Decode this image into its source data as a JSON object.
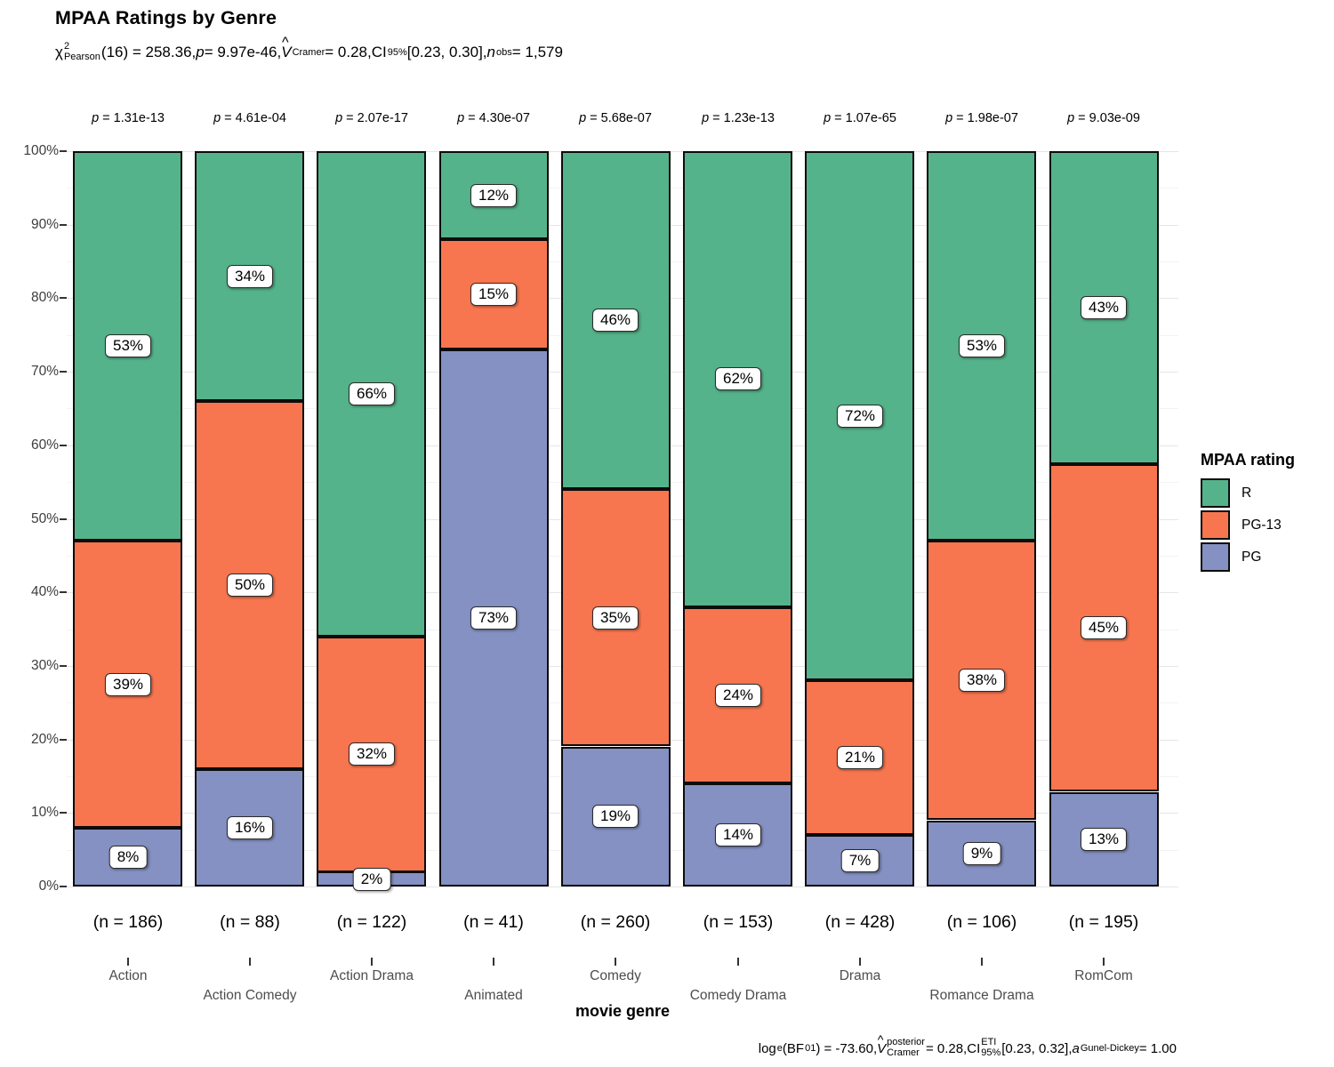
{
  "title": "MPAA Ratings by Genre",
  "subtitle": {
    "chi": "χ",
    "chi_sup": "2",
    "chi_sub": "Pearson",
    "p1": "(16) = 258.36, ",
    "p_sym": "p",
    "p2": " = 9.97e-46, ",
    "v_sym": "V",
    "hat": "^",
    "v_sub": "Cramer",
    "p3": " = 0.28, ",
    "ci_sym": "CI",
    "ci_sub": "95%",
    "p4": " [0.23, 0.30], ",
    "n_sym": "n",
    "n_sub": "obs",
    "p5": " = 1,579"
  },
  "caption": {
    "log": "log",
    "log_sub": "e",
    "p1": "(BF",
    "bf_sub": "01",
    "p2": ") = -73.60, ",
    "v_sym": "V",
    "hat": "^",
    "v_sup": "posterior",
    "v_sub": "Cramer",
    "p3": " = 0.28, ",
    "ci_sym": "CI",
    "ci_sup": "ETI",
    "ci_sub": "95%",
    "p4": " [0.23, 0.32], ",
    "a_sym": "a",
    "a_sub": "Gunel-Dickey",
    "p5": " = 1.00"
  },
  "chart_data": {
    "type": "bar",
    "stacked": true,
    "percent_scale": true,
    "title": "MPAA Ratings by Genre",
    "xlabel": "movie genre",
    "ylabel": "",
    "ylim": [
      0,
      100
    ],
    "grid": true,
    "legend_title": "MPAA rating",
    "legend_position": "right",
    "ytick_labels": [
      "0%",
      "10%",
      "20%",
      "30%",
      "40%",
      "50%",
      "60%",
      "70%",
      "80%",
      "90%",
      "100%"
    ],
    "categories": [
      "Action",
      "Action Comedy",
      "Action Drama",
      "Animated",
      "Comedy",
      "Comedy Drama",
      "Drama",
      "Romance Drama",
      "RomCom"
    ],
    "n_labels": [
      "(n = 186)",
      "(n = 88)",
      "(n = 122)",
      "(n = 41)",
      "(n = 260)",
      "(n = 153)",
      "(n = 428)",
      "(n = 106)",
      "(n = 195)"
    ],
    "p_labels": [
      "p = 1.31e-13",
      "p = 4.61e-04",
      "p = 2.07e-17",
      "p = 4.30e-07",
      "p = 5.68e-07",
      "p = 1.23e-13",
      "p = 1.07e-65",
      "p = 1.98e-07",
      "p = 9.03e-09"
    ],
    "series": [
      {
        "name": "R",
        "color": "#55b38b",
        "values": [
          53,
          34,
          66,
          12,
          46,
          62,
          72,
          53,
          43
        ]
      },
      {
        "name": "PG-13",
        "color": "#f8764f",
        "values": [
          39,
          50,
          32,
          15,
          35,
          24,
          21,
          38,
          45
        ]
      },
      {
        "name": "PG",
        "color": "#8591c3",
        "values": [
          8,
          16,
          2,
          73,
          19,
          14,
          7,
          9,
          13
        ]
      }
    ]
  }
}
